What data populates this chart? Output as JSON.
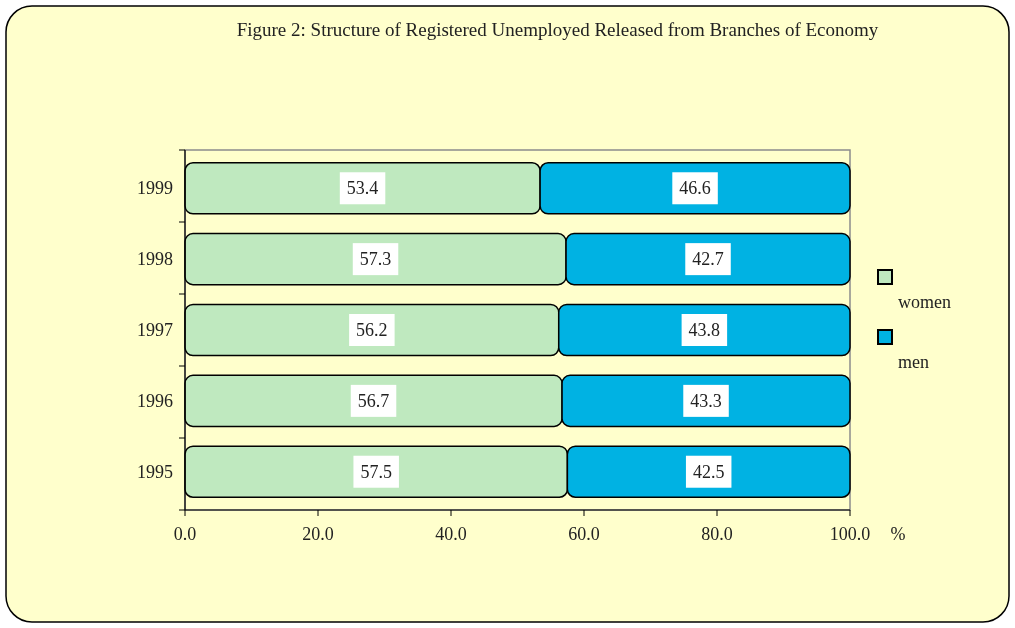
{
  "chart_data": {
    "type": "bar",
    "orientation": "horizontal",
    "stacked": true,
    "title": "Figure 2: Structure of Registered Unemployed Released from Branches of Economy",
    "xlabel": "%",
    "categories": [
      "1999",
      "1998",
      "1997",
      "1996",
      "1995"
    ],
    "series": [
      {
        "name": "women",
        "color": "#bfe9bf",
        "values": [
          53.4,
          57.3,
          56.2,
          56.7,
          57.5
        ]
      },
      {
        "name": "men",
        "color": "#00b2e3",
        "values": [
          46.6,
          42.7,
          43.8,
          43.3,
          42.5
        ]
      }
    ],
    "xlim": [
      0,
      100
    ],
    "xticks": [
      {
        "value": 0,
        "label": "0.0"
      },
      {
        "value": 20,
        "label": "20.0"
      },
      {
        "value": 40,
        "label": "40.0"
      },
      {
        "value": 60,
        "label": "60.0"
      },
      {
        "value": 80,
        "label": "80.0"
      },
      {
        "value": 100,
        "label": "100.0"
      }
    ],
    "data_labels": true,
    "legend": "right"
  }
}
